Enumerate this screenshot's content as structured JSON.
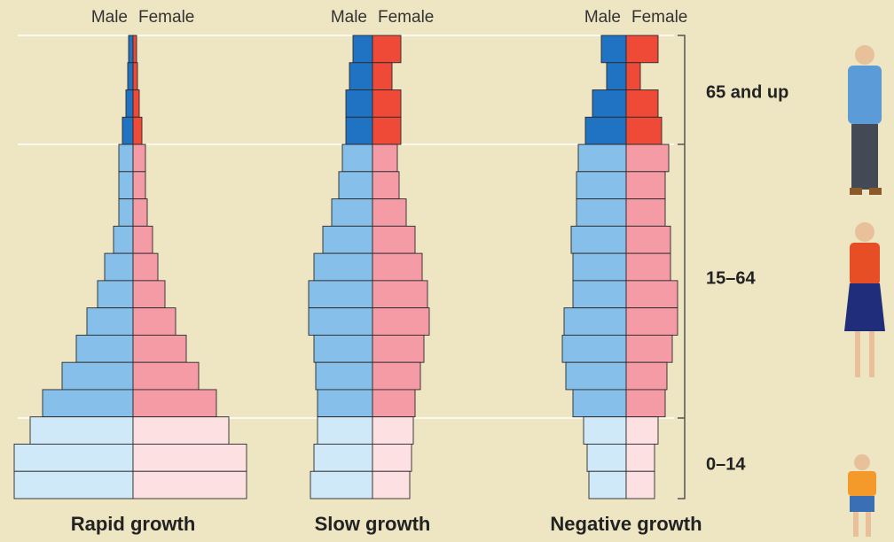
{
  "age_groups": [
    "65 and up",
    "15–64",
    "0–14"
  ],
  "chart_data": [
    {
      "type": "pyramid",
      "title": "Rapid growth",
      "series": [
        {
          "name": "Male",
          "colors": [
            "#1f73c2",
            "#86bfe9",
            "#cfe9f9"
          ],
          "values": [
            [
              5,
              6,
              8,
              12
            ],
            [
              16,
              16,
              16,
              22,
              32,
              40,
              52,
              64,
              80,
              102
            ],
            [
              116,
              134,
              134
            ]
          ]
        },
        {
          "name": "Female",
          "colors": [
            "#ef4a38",
            "#f59ba6",
            "#fde0e2"
          ],
          "values": [
            [
              4,
              5,
              7,
              10
            ],
            [
              14,
              14,
              16,
              22,
              28,
              36,
              48,
              60,
              74,
              94
            ],
            [
              108,
              128,
              128
            ]
          ]
        }
      ]
    },
    {
      "type": "pyramid",
      "title": "Slow growth",
      "series": [
        {
          "name": "Male",
          "colors": [
            "#1f73c2",
            "#86bfe9",
            "#cfe9f9"
          ],
          "values": [
            [
              22,
              26,
              30,
              30
            ],
            [
              34,
              38,
              46,
              56,
              66,
              72,
              72,
              66,
              64,
              62
            ],
            [
              62,
              66,
              70
            ]
          ]
        },
        {
          "name": "Female",
          "colors": [
            "#ef4a38",
            "#f59ba6",
            "#fde0e2"
          ],
          "values": [
            [
              32,
              22,
              32,
              32
            ],
            [
              28,
              30,
              38,
              48,
              56,
              62,
              64,
              58,
              54,
              48
            ],
            [
              46,
              44,
              42
            ]
          ]
        }
      ]
    },
    {
      "type": "pyramid",
      "title": "Negative growth",
      "series": [
        {
          "name": "Male",
          "colors": [
            "#1f73c2",
            "#86bfe9",
            "#cfe9f9"
          ],
          "values": [
            [
              28,
              22,
              38,
              46
            ],
            [
              54,
              56,
              56,
              62,
              60,
              60,
              70,
              72,
              68,
              60
            ],
            [
              48,
              44,
              42
            ]
          ]
        },
        {
          "name": "Female",
          "colors": [
            "#ef4a38",
            "#f59ba6",
            "#fde0e2"
          ],
          "values": [
            [
              36,
              16,
              36,
              40
            ],
            [
              48,
              44,
              44,
              50,
              50,
              58,
              58,
              52,
              46,
              44
            ],
            [
              36,
              32,
              32
            ]
          ]
        }
      ]
    }
  ]
}
